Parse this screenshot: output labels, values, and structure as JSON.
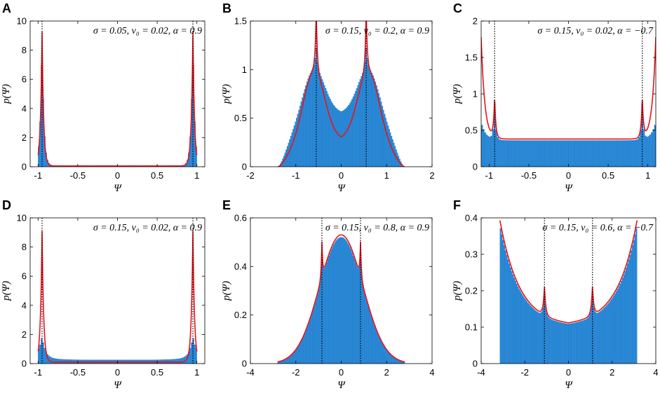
{
  "figure": {
    "colors": {
      "histogram": "#2b8cdc",
      "histogram_edge": "#1a6fb5",
      "fit": "#e8131b",
      "axis": "#000000",
      "marker": "#000000"
    }
  },
  "chart_data": [
    {
      "panel": "A",
      "type": "bar",
      "xlabel": "Ψ",
      "ylabel": "p(Ψ)",
      "annotation": "σ = 0.05,  v₀ = 0.02,  α = 0.9",
      "xlim": [
        -1.1,
        1.1
      ],
      "ylim": [
        0,
        10
      ],
      "xticks": [
        -1,
        -0.5,
        0,
        0.5,
        1
      ],
      "xtick_labels": [
        "-1",
        "-0.5",
        "0",
        "0.5",
        "1"
      ],
      "yticks": [
        0,
        2,
        4,
        6,
        8,
        10
      ],
      "ytick_labels": [
        "0",
        "2",
        "4",
        "6",
        "8",
        "10"
      ],
      "marker_lines": [
        -0.95,
        0.95
      ],
      "histogram": {
        "range": [
          -1.0,
          1.0
        ],
        "shape": "u",
        "peaks": [
          -0.95,
          0.95
        ],
        "peak_height": 8.5,
        "peak_width": 0.022,
        "baseline": 0.07,
        "edge_boost": 0,
        "edge_width": 0.05,
        "center_bump": 0,
        "center_width": 0.5
      },
      "fit": {
        "range": [
          -1.0,
          1.0
        ],
        "shape": "u",
        "peaks": [
          -0.95,
          0.95
        ],
        "peak_height": 9.2,
        "peak_width": 0.02,
        "baseline": 0.05,
        "edge_boost": 0,
        "edge_width": 0.05,
        "center_bump": 0,
        "center_width": 0.5
      }
    },
    {
      "panel": "B",
      "type": "bar",
      "xlabel": "Ψ",
      "ylabel": "p(Ψ)",
      "annotation": "σ = 0.15,  v₀ = 0.2,  α = 0.9",
      "xlim": [
        -2,
        2
      ],
      "ylim": [
        0,
        1.5
      ],
      "xticks": [
        -2,
        -1,
        0,
        1,
        2
      ],
      "xtick_labels": [
        "-2",
        "-1",
        "0",
        "1",
        "2"
      ],
      "yticks": [
        0,
        0.5,
        1,
        1.5
      ],
      "ytick_labels": [
        "0",
        "0.5",
        "1",
        "1.5"
      ],
      "marker_lines": [
        -0.55,
        0.55
      ],
      "histogram": {
        "range": [
          -1.4,
          1.4
        ],
        "shape": "dome",
        "peaks": [
          -0.55,
          0.55
        ],
        "peak_height": 0.25,
        "peak_width": 0.03,
        "baseline": 0.55,
        "edge_boost": 0.48,
        "edge_width": 0.45,
        "center_bump": 0,
        "center_width": 0.5
      },
      "fit": {
        "range": [
          -1.4,
          1.4
        ],
        "shape": "dome",
        "peaks": [
          -0.55,
          0.55
        ],
        "peak_height": 0.65,
        "peak_width": 0.025,
        "baseline": 0.28,
        "edge_boost": 0.72,
        "edge_width": 0.4,
        "center_bump": 0,
        "center_width": 0.5
      }
    },
    {
      "panel": "C",
      "type": "bar",
      "xlabel": "Ψ",
      "ylabel": "p(Ψ)",
      "annotation": "σ = 0.15,  v₀ = 0.02,  α = −0.7",
      "xlim": [
        -1.1,
        1.1
      ],
      "ylim": [
        0,
        2
      ],
      "xticks": [
        -1,
        -0.5,
        0,
        0.5,
        1
      ],
      "xtick_labels": [
        "-1",
        "-0.5",
        "0",
        "0.5",
        "1"
      ],
      "yticks": [
        0,
        0.5,
        1,
        1.5,
        2
      ],
      "ytick_labels": [
        "0",
        "0.5",
        "1",
        "1.5",
        "2"
      ],
      "marker_lines": [
        -0.93,
        0.93
      ],
      "histogram": {
        "range": [
          -1.1,
          1.1
        ],
        "shape": "flat",
        "peaks": [
          -0.93,
          0.93
        ],
        "peak_height": 0.5,
        "peak_width": 0.015,
        "baseline": 0.36,
        "edge_boost": 0.25,
        "edge_width": 0.06,
        "center_bump": 0,
        "center_width": 0.5
      },
      "fit": {
        "range": [
          -1.1,
          1.1
        ],
        "shape": "flat",
        "peaks": [
          -0.93,
          0.93
        ],
        "peak_height": 0.55,
        "peak_width": 0.015,
        "baseline": 0.38,
        "edge_boost": 1.4,
        "edge_width": 0.045,
        "center_bump": 0,
        "center_width": 0.5
      }
    },
    {
      "panel": "D",
      "type": "bar",
      "xlabel": "Ψ",
      "ylabel": "p(Ψ)",
      "annotation": "σ = 0.15,  v₀ = 0.02,  α = 0.9",
      "xlim": [
        -1.1,
        1.1
      ],
      "ylim": [
        0,
        10
      ],
      "xticks": [
        -1,
        -0.5,
        0,
        0.5,
        1
      ],
      "xtick_labels": [
        "-1",
        "-0.5",
        "0",
        "0.5",
        "1"
      ],
      "yticks": [
        0,
        2,
        4,
        6,
        8,
        10
      ],
      "ytick_labels": [
        "0",
        "2",
        "4",
        "6",
        "8",
        "10"
      ],
      "marker_lines": [
        -0.95,
        0.95
      ],
      "histogram": {
        "range": [
          -1.0,
          1.0
        ],
        "shape": "u",
        "peaks": [
          -0.95,
          0.95
        ],
        "peak_height": 1.4,
        "peak_width": 0.04,
        "baseline": 0.25,
        "edge_boost": 0.3,
        "edge_width": 0.15,
        "center_bump": 0,
        "center_width": 0.5
      },
      "fit": {
        "range": [
          -1.0,
          1.0
        ],
        "shape": "u",
        "peaks": [
          -0.95,
          0.95
        ],
        "peak_height": 9.0,
        "peak_width": 0.02,
        "baseline": 0.1,
        "edge_boost": 0,
        "edge_width": 0.05,
        "center_bump": 0,
        "center_width": 0.5
      }
    },
    {
      "panel": "E",
      "type": "bar",
      "xlabel": "Ψ",
      "ylabel": "p(Ψ)",
      "annotation": "σ = 0.15,  v₀ = 0.8,  α = 0.9",
      "xlim": [
        -4,
        4
      ],
      "ylim": [
        0,
        0.6
      ],
      "xticks": [
        -4,
        -2,
        0,
        2,
        4
      ],
      "xtick_labels": [
        "-4",
        "-2",
        "0",
        "2",
        "4"
      ],
      "yticks": [
        0,
        0.2,
        0.4,
        0.6
      ],
      "ytick_labels": [
        "0",
        "0.2",
        "0.4",
        "0.6"
      ],
      "marker_lines": [
        -0.85,
        0.85
      ],
      "histogram": {
        "range": [
          -2.8,
          2.8
        ],
        "shape": "gauss",
        "peaks": [
          -0.85,
          0.85
        ],
        "peak_height": 0.13,
        "peak_width": 0.04,
        "baseline": 0.52,
        "edge_boost": 0,
        "edge_width": 0.5,
        "center_bump": 0,
        "center_width": 0.95
      },
      "fit": {
        "range": [
          -2.8,
          2.8
        ],
        "shape": "gauss",
        "peaks": [
          -0.85,
          0.85
        ],
        "peak_height": 0.15,
        "peak_width": 0.035,
        "baseline": 0.53,
        "edge_boost": 0,
        "edge_width": 0.5,
        "center_bump": 0,
        "center_width": 0.95
      }
    },
    {
      "panel": "F",
      "type": "bar",
      "xlabel": "Ψ",
      "ylabel": "p(Ψ)",
      "annotation": "σ = 0.15,  v₀ = 0.6,  α = −0.7",
      "xlim": [
        -4,
        4
      ],
      "ylim": [
        0,
        0.4
      ],
      "xticks": [
        -4,
        -2,
        0,
        2,
        4
      ],
      "xtick_labels": [
        "-4",
        "-2",
        "0",
        "2",
        "4"
      ],
      "yticks": [
        0,
        0.1,
        0.2,
        0.3,
        0.4
      ],
      "ytick_labels": [
        "0",
        "0.1",
        "0.2",
        "0.3",
        "0.4"
      ],
      "marker_lines": [
        -1.1,
        1.1
      ],
      "histogram": {
        "range": [
          -3.14,
          3.14
        ],
        "shape": "bowl",
        "peaks": [
          -1.1,
          1.1
        ],
        "peak_height": 0.07,
        "peak_width": 0.06,
        "baseline": 0.1,
        "edge_boost": 0.28,
        "edge_width": 0.9,
        "center_bump": 0,
        "center_width": 0.5
      },
      "fit": {
        "range": [
          -3.14,
          3.14
        ],
        "shape": "bowl",
        "peaks": [
          -1.1,
          1.1
        ],
        "peak_height": 0.08,
        "peak_width": 0.06,
        "baseline": 0.103,
        "edge_boost": 0.29,
        "edge_width": 0.9,
        "center_bump": 0,
        "center_width": 0.5
      }
    }
  ]
}
